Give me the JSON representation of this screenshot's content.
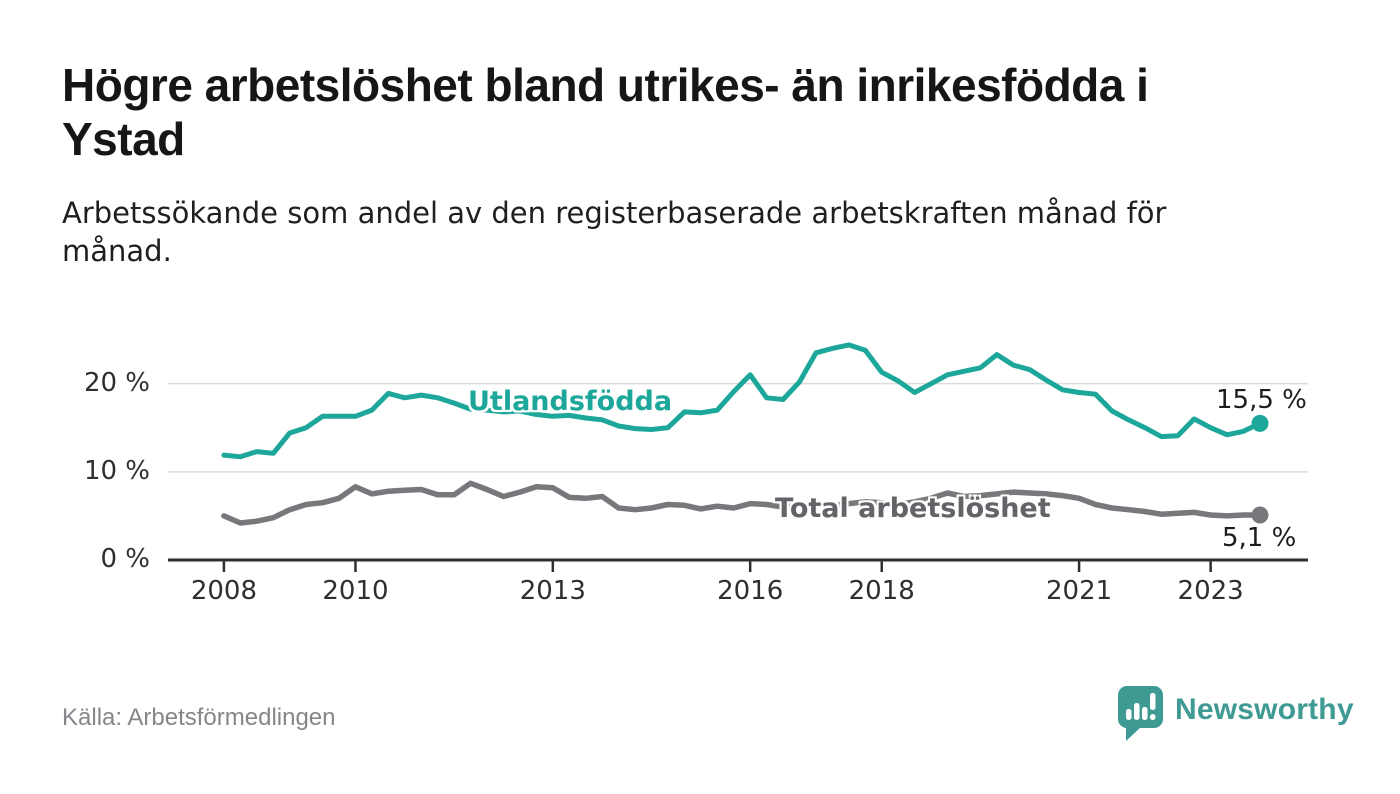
{
  "title": "Högre arbetslöshet bland utrikes- än inrikesfödda i\nYstad",
  "subtitle": "Arbetssökande som andel av den registerbaserade arbetskraften månad för\nmånad.",
  "source": "Källa: Arbetsförmedlingen",
  "brand": {
    "name": "Newsworthy",
    "color": "#3f9a93"
  },
  "chart_data": {
    "type": "line",
    "unit": "%",
    "title": "Högre arbetslöshet bland utrikes- än inrikesfödda i Ystad",
    "subtitle": "Arbetssökande som andel av den registerbaserade arbetskraften månad för månad.",
    "x_ticks": [
      2008,
      2010,
      2013,
      2016,
      2018,
      2021,
      2023
    ],
    "y_ticks": [
      {
        "value": 0,
        "label": "0 %"
      },
      {
        "value": 10,
        "label": "10 %"
      },
      {
        "value": 20,
        "label": "20 %"
      }
    ],
    "xlim": [
      2007.15,
      2024.48
    ],
    "ylim": [
      0,
      26.2
    ],
    "grid": true,
    "grid_color": "#dcdcdc",
    "axis_color": "#2f2f31",
    "x_start": 2008.0,
    "x_step_years": 0.25,
    "series": [
      {
        "id": "utlandsfodda",
        "name": "Utlandsfödda",
        "color": "#1ca79a",
        "label_color": "#1ca79a",
        "end_label": "15,5 %",
        "end_value": 15.5,
        "values": [
          11.9,
          11.7,
          12.3,
          12.1,
          14.4,
          15.0,
          16.3,
          16.3,
          16.3,
          17.0,
          18.9,
          18.4,
          18.7,
          18.4,
          17.8,
          17.1,
          17.0,
          16.8,
          16.9,
          16.5,
          16.3,
          16.4,
          16.1,
          15.9,
          15.2,
          14.9,
          14.8,
          15.0,
          16.8,
          16.7,
          17.0,
          19.1,
          21.0,
          18.4,
          18.2,
          20.2,
          23.5,
          24.0,
          24.4,
          23.8,
          21.3,
          20.3,
          19.0,
          20.0,
          21.0,
          21.4,
          21.8,
          23.3,
          22.1,
          21.6,
          20.4,
          19.3,
          19.0,
          18.8,
          16.9,
          15.9,
          15.0,
          14.0,
          14.1,
          16.0,
          15.0,
          14.2,
          14.6,
          15.5
        ]
      },
      {
        "id": "total",
        "name": "Total arbetslöshet",
        "color": "#78787c",
        "label_color": "#636368",
        "end_label": "5,1 %",
        "end_value": 5.1,
        "values": [
          5.0,
          4.2,
          4.4,
          4.8,
          5.7,
          6.3,
          6.5,
          7.0,
          8.3,
          7.5,
          7.8,
          7.9,
          8.0,
          7.4,
          7.4,
          8.7,
          8.0,
          7.2,
          7.7,
          8.3,
          8.2,
          7.1,
          7.0,
          7.2,
          5.9,
          5.7,
          5.9,
          6.3,
          6.2,
          5.8,
          6.1,
          5.9,
          6.4,
          6.3,
          6.0,
          6.2,
          6.5,
          6.2,
          6.4,
          6.6,
          6.5,
          6.3,
          6.6,
          7.0,
          7.6,
          7.2,
          7.3,
          7.5,
          7.7,
          7.6,
          7.5,
          7.3,
          7.0,
          6.3,
          5.9,
          5.7,
          5.5,
          5.2,
          5.3,
          5.4,
          5.1,
          5.0,
          5.1,
          5.1
        ]
      }
    ]
  }
}
